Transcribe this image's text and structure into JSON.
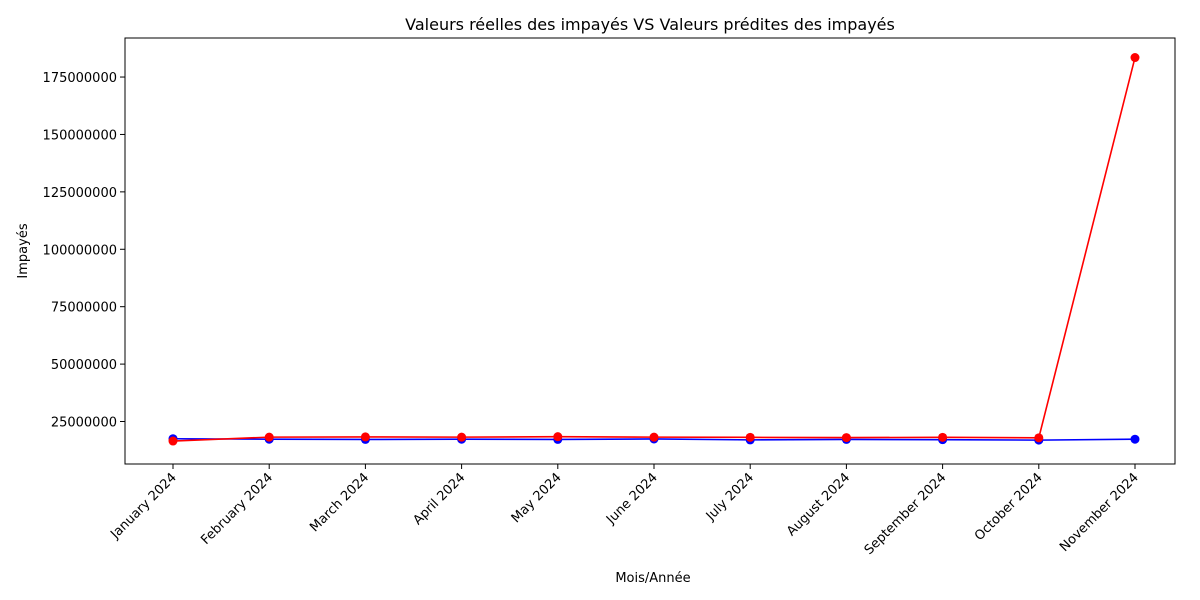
{
  "chart_data": {
    "type": "line",
    "title": "Valeurs réelles des impayés  VS Valeurs prédites des impayés",
    "xlabel": "Mois/Année",
    "ylabel": "Impayés",
    "categories": [
      "January 2024",
      "February 2024",
      "March 2024",
      "April 2024",
      "May 2024",
      "June 2024",
      "July 2024",
      "August 2024",
      "September 2024",
      "October 2024",
      "November 2024"
    ],
    "y_ticks": [
      25000000,
      50000000,
      75000000,
      100000000,
      125000000,
      150000000,
      175000000
    ],
    "y_tick_labels": [
      "25000000",
      "50000000",
      "75000000",
      "100000000",
      "125000000",
      "150000000",
      "175000000"
    ],
    "ylim": [
      6500000,
      192000000
    ],
    "grid": false,
    "legend": "none",
    "series": [
      {
        "color": "#0000ff",
        "marker": "circle",
        "values": [
          17500000,
          17300000,
          17200000,
          17300000,
          17200000,
          17400000,
          17000000,
          17200000,
          17100000,
          16900000,
          17300000
        ]
      },
      {
        "color": "#ff0000",
        "marker": "circle",
        "values": [
          16500000,
          18200000,
          18300000,
          18200000,
          18400000,
          18200000,
          18100000,
          18000000,
          18100000,
          17900000,
          183500000
        ]
      }
    ]
  }
}
